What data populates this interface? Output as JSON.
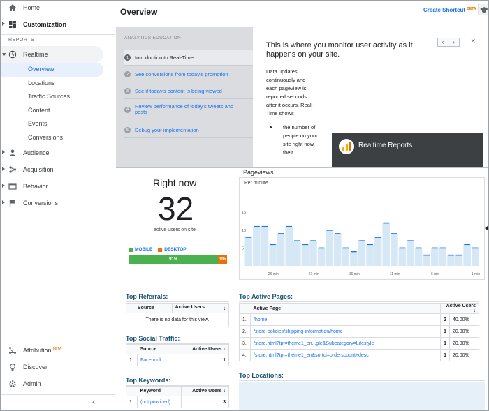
{
  "sidebar": {
    "top_items": [
      {
        "label": "Home",
        "icon": "home-icon"
      },
      {
        "label": "Customization",
        "icon": "dashboard-icon"
      }
    ],
    "section_label": "REPORTS",
    "realtime": {
      "label": "Realtime",
      "children": [
        "Overview",
        "Locations",
        "Traffic Sources",
        "Content",
        "Events",
        "Conversions"
      ]
    },
    "report_items": [
      {
        "label": "Audience",
        "icon": "person-icon"
      },
      {
        "label": "Acquisition",
        "icon": "acquisition-icon"
      },
      {
        "label": "Behavior",
        "icon": "behavior-icon"
      },
      {
        "label": "Conversions",
        "icon": "flag-icon"
      }
    ],
    "bottom_items": [
      {
        "label": "Attribution",
        "badge": "BETA",
        "icon": "attribution-icon"
      },
      {
        "label": "Discover",
        "icon": "lightbulb-icon"
      },
      {
        "label": "Admin",
        "icon": "gear-icon"
      }
    ],
    "collapse_glyph": "‹"
  },
  "header": {
    "title": "Overview",
    "shortcut_label": "Create Shortcut",
    "shortcut_badge": "BETA"
  },
  "education": {
    "heading": "ANALYTICS EDUCATION",
    "items": [
      {
        "num": "1",
        "label": "Introduction to Real-Time"
      },
      {
        "num": "2",
        "label": "See conversions from today's promotion"
      },
      {
        "num": "3",
        "label": "See if today's content is being viewed"
      },
      {
        "num": "4",
        "label": "Review performance of today's tweets and posts"
      },
      {
        "num": "5",
        "label": "Debug your implementation"
      }
    ],
    "title": "This is where you monitor user activity as it happens on your site.",
    "body": "Data updates continuously and each pageview is reported seconds after it occurs. Real-Time shows",
    "bullet": "the number of people on your site right now, their",
    "nav_prev": "‹",
    "nav_next": "›",
    "close": "×",
    "video_title": "Realtime Reports",
    "video_menu": "⋮"
  },
  "right_now": {
    "title": "Right now",
    "count": "32",
    "label": "active users on site",
    "legend": {
      "mobile": "MOBILE",
      "desktop": "DESKTOP"
    },
    "mobile_pct_label": "91%",
    "desktop_pct_label": "9%",
    "mobile_fraction": 0.91,
    "colors": {
      "mobile": "#4caf50",
      "desktop": "#e8710a"
    }
  },
  "pageviews": {
    "title": "Pageviews",
    "subtitle": "Per minute"
  },
  "chart_data": {
    "type": "bar",
    "title": "Pageviews",
    "subtitle": "Per minute",
    "ylim": [
      0,
      17
    ],
    "y_ticks": [
      "15",
      "10",
      "5"
    ],
    "x_tick_labels": [
      "-26 min",
      "-21 min",
      "-16 min",
      "-11 min",
      "-6 min",
      "-1 min"
    ],
    "values": [
      8,
      11,
      11,
      6,
      9,
      11,
      7,
      6,
      7,
      5,
      10,
      9,
      5,
      4,
      7,
      6,
      8,
      12,
      9,
      5,
      7,
      5,
      3,
      5,
      5,
      3,
      3,
      6,
      5
    ],
    "color": "#1a73e8",
    "fill": "#d6e8f5"
  },
  "top_referrals": {
    "title": "Top Referrals:",
    "columns": [
      "Source",
      "Active Users"
    ],
    "empty": "There is no data for this view."
  },
  "top_social": {
    "title": "Top Social Traffic:",
    "columns": [
      "Source",
      "Active Users"
    ],
    "rows": [
      {
        "idx": "1.",
        "source": "Facebook",
        "users": "1"
      }
    ]
  },
  "top_keywords": {
    "title": "Top Keywords:",
    "columns": [
      "Keyword",
      "Active Users"
    ],
    "rows": [
      {
        "idx": "1.",
        "keyword": "(not provided)",
        "users": "3"
      }
    ]
  },
  "top_pages": {
    "title": "Top Active Pages:",
    "columns": [
      "Active Page",
      "Active Users"
    ],
    "rows": [
      {
        "idx": "1.",
        "page": "/home",
        "users": "2",
        "pct": "40.00%"
      },
      {
        "idx": "2.",
        "page": "/store-policies/shipping-information/home",
        "users": "1",
        "pct": "20.00%"
      },
      {
        "idx": "3.",
        "page": "/store.html?tpt=theme1_en...gle&Subcategory=Lifestyle",
        "users": "1",
        "pct": "20.00%"
      },
      {
        "idx": "4.",
        "page": "/store.html?tpt=theme1_en&sortci=orderscount+desc",
        "users": "1",
        "pct": "20.00%"
      }
    ]
  },
  "top_locations": {
    "title": "Top Locations:"
  },
  "sort_glyph": "↓"
}
